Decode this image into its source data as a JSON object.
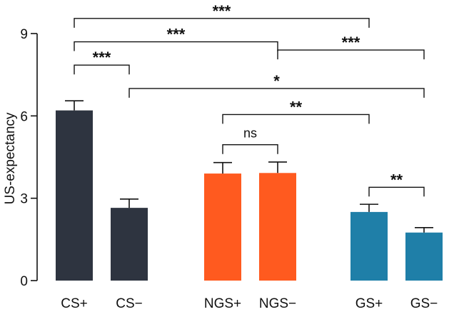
{
  "chart_data": {
    "type": "bar",
    "ylabel": "US-expectancy",
    "xlabel": "",
    "ylim": [
      0,
      9
    ],
    "yticks": [
      0,
      3,
      6,
      9
    ],
    "grid": false,
    "categories": [
      "CS+",
      "CS−",
      "NGS+",
      "NGS−",
      "GS+",
      "GS−"
    ],
    "values": [
      6.2,
      2.65,
      3.9,
      3.92,
      2.5,
      1.75
    ],
    "errors": [
      0.35,
      0.32,
      0.4,
      0.4,
      0.28,
      0.18
    ],
    "colors": [
      "#2e3440",
      "#2e3440",
      "#ff5a1f",
      "#ff5a1f",
      "#1f7fa8",
      "#1f7fa8"
    ],
    "significance": [
      {
        "from": 0,
        "to": 4,
        "label": "***",
        "y": 9.55
      },
      {
        "from": 0,
        "to": 3,
        "label": "***",
        "y": 8.7
      },
      {
        "from": 0,
        "to": 1,
        "label": "***",
        "y": 7.85
      },
      {
        "from": 3,
        "to": 5,
        "label": "***",
        "y": 8.4
      },
      {
        "from": 1,
        "to": 5,
        "label": "*",
        "y": 7.0
      },
      {
        "from": 2,
        "to": 4,
        "label": "**",
        "y": 6.05
      },
      {
        "from": 2,
        "to": 3,
        "label": "ns",
        "y": 4.95
      },
      {
        "from": 4,
        "to": 5,
        "label": "**",
        "y": 3.4
      }
    ]
  }
}
